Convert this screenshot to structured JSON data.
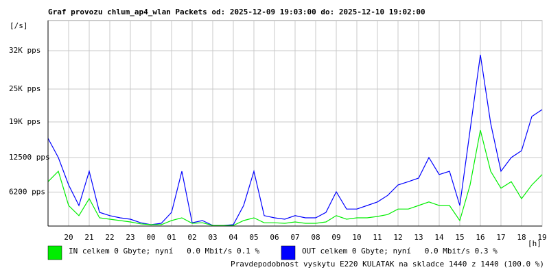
{
  "chart_data": {
    "type": "line",
    "title": "Graf provozu chlum_ap4_wlan Packets od: 2025-12-09 19:03:00 do: 2025-12-10 19:02:00",
    "y_label": "[/s]",
    "x_label": "[h]",
    "x": [
      0,
      0.5,
      1,
      1.5,
      2,
      2.5,
      3,
      3.5,
      4,
      4.5,
      5,
      5.5,
      6,
      6.5,
      7,
      7.5,
      8,
      8.5,
      9,
      9.5,
      10,
      10.5,
      11,
      11.5,
      12,
      12.5,
      13,
      13.5,
      14,
      14.5,
      15,
      15.5,
      16,
      16.5,
      17,
      17.5,
      18,
      18.5,
      19,
      19.5,
      20,
      20.5,
      21,
      21.5,
      22,
      22.5,
      23,
      23.5,
      24
    ],
    "xlim": [
      0,
      24
    ],
    "xticks": [
      {
        "value": 1,
        "label": "20"
      },
      {
        "value": 2,
        "label": "21"
      },
      {
        "value": 3,
        "label": "22"
      },
      {
        "value": 4,
        "label": "23"
      },
      {
        "value": 5,
        "label": "00"
      },
      {
        "value": 6,
        "label": "01"
      },
      {
        "value": 7,
        "label": "02"
      },
      {
        "value": 8,
        "label": "03"
      },
      {
        "value": 9,
        "label": "04"
      },
      {
        "value": 10,
        "label": "05"
      },
      {
        "value": 11,
        "label": "06"
      },
      {
        "value": 12,
        "label": "07"
      },
      {
        "value": 13,
        "label": "08"
      },
      {
        "value": 14,
        "label": "09"
      },
      {
        "value": 15,
        "label": "10"
      },
      {
        "value": 16,
        "label": "11"
      },
      {
        "value": 17,
        "label": "12"
      },
      {
        "value": 18,
        "label": "13"
      },
      {
        "value": 19,
        "label": "14"
      },
      {
        "value": 20,
        "label": "15"
      },
      {
        "value": 21,
        "label": "16"
      },
      {
        "value": 22,
        "label": "17"
      },
      {
        "value": 23,
        "label": "18"
      },
      {
        "value": 24,
        "label": "19"
      }
    ],
    "ylim": [
      0,
      37500
    ],
    "yticks": [
      {
        "value": 6200,
        "label": "6200 pps"
      },
      {
        "value": 12500,
        "label": "12500 pps"
      },
      {
        "value": 19000,
        "label": "19K pps"
      },
      {
        "value": 25000,
        "label": "25K pps"
      },
      {
        "value": 32000,
        "label": "32K pps"
      }
    ],
    "grid": true,
    "series": [
      {
        "name": "IN celkem 0 Gbyte; nyní   0.0 Mbit/s 0.1 %",
        "color": "#00ee00",
        "values": [
          8100,
          10000,
          3750,
          1900,
          5000,
          1500,
          1250,
          1000,
          750,
          400,
          250,
          250,
          1000,
          1500,
          500,
          600,
          100,
          100,
          100,
          1000,
          1500,
          600,
          600,
          500,
          750,
          500,
          500,
          750,
          1900,
          1250,
          1500,
          1500,
          1750,
          2100,
          3100,
          3100,
          3750,
          4400,
          3750,
          3750,
          1000,
          7500,
          17500,
          10000,
          6900,
          8100,
          5000,
          7500,
          9400
        ]
      },
      {
        "name": "OUT celkem 0 Gbyte; nyní   0.0 Mbit/s 0.3 %",
        "color": "#0000ff",
        "values": [
          16000,
          12500,
          7500,
          3750,
          10000,
          2500,
          1900,
          1500,
          1250,
          600,
          250,
          500,
          2500,
          10000,
          600,
          1000,
          100,
          100,
          250,
          3750,
          10000,
          1900,
          1500,
          1250,
          1900,
          1500,
          1500,
          2500,
          6250,
          3100,
          3100,
          3750,
          4400,
          5600,
          7500,
          8100,
          8750,
          12500,
          9400,
          10000,
          3750,
          17500,
          31250,
          18750,
          10000,
          12500,
          13750,
          20000,
          21250
        ]
      }
    ],
    "footnote": "Pravdepodobnost vyskytu E220 KULATAK na skladce 1440 z 1440 (100.0 %)",
    "footnote_color": "#ff0000"
  }
}
